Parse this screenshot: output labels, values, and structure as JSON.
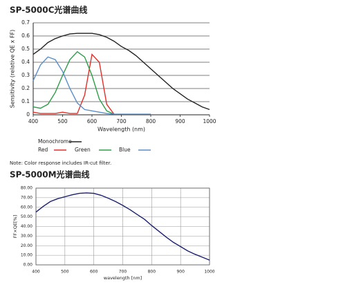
{
  "chart_data": [
    {
      "type": "line",
      "title": "SP-5000C光谱曲线",
      "x_label": "Wavelength (nm)",
      "y_label": "Sensitivity (relative QE x FF)",
      "note": "Note: Color response includes IR-cut filter.",
      "x": [
        400,
        425,
        450,
        475,
        500,
        525,
        550,
        575,
        600,
        625,
        650,
        675,
        700,
        725,
        750,
        775,
        800,
        825,
        850,
        875,
        900,
        925,
        950,
        975,
        1000
      ],
      "series": [
        {
          "name": "Monochrome",
          "color": "#222222",
          "values": [
            0.46,
            0.5,
            0.55,
            0.58,
            0.6,
            0.615,
            0.62,
            0.62,
            0.62,
            0.61,
            0.59,
            0.56,
            0.52,
            0.49,
            0.45,
            0.4,
            0.35,
            0.3,
            0.25,
            0.2,
            0.16,
            0.12,
            0.09,
            0.06,
            0.04
          ]
        },
        {
          "name": "Red",
          "color": "#e0302a",
          "values": [
            0.02,
            0.01,
            0.01,
            0.01,
            0.02,
            0.01,
            0.01,
            0.15,
            0.46,
            0.4,
            0.08,
            0.005,
            null,
            null,
            null,
            null,
            null,
            null,
            null,
            null,
            null,
            null,
            null,
            null,
            null
          ]
        },
        {
          "name": "Green",
          "color": "#2e9e48",
          "values": [
            0.06,
            0.05,
            0.08,
            0.17,
            0.3,
            0.42,
            0.48,
            0.44,
            0.3,
            0.12,
            0.03,
            0.005,
            null,
            null,
            null,
            null,
            null,
            null,
            null,
            null,
            null,
            null,
            null,
            null,
            null
          ]
        },
        {
          "name": "Blue",
          "color": "#5a8ec8",
          "values": [
            0.26,
            0.38,
            0.44,
            0.42,
            0.33,
            0.2,
            0.09,
            0.04,
            0.03,
            0.02,
            0.01,
            0.005,
            0.005,
            0.005,
            0.005,
            0.005,
            0.005,
            null,
            null,
            null,
            null,
            null,
            null,
            null,
            null
          ]
        }
      ],
      "xlim": [
        400,
        1000
      ],
      "xticks": [
        400,
        500,
        600,
        700,
        800,
        900,
        1000
      ],
      "ylim": [
        0,
        0.7
      ],
      "yticks": [
        0,
        0.1,
        0.2,
        0.3,
        0.4,
        0.5,
        0.6,
        0.7
      ],
      "grid": "horizontal",
      "legend": "bottom"
    },
    {
      "type": "line",
      "title": "SP-5000M光谱曲线",
      "x_label": "wavelength [nm]",
      "y_label": "FF×QE[%]",
      "x": [
        400,
        425,
        450,
        475,
        500,
        525,
        550,
        575,
        600,
        625,
        650,
        675,
        700,
        725,
        750,
        775,
        800,
        825,
        850,
        875,
        900,
        925,
        950,
        975,
        1000
      ],
      "series": [
        {
          "color": "#1a1f6e",
          "values": [
            55,
            61,
            66,
            69,
            71,
            73,
            74.5,
            75,
            74.5,
            72.5,
            69.5,
            66,
            62,
            57.5,
            52.5,
            47.5,
            41,
            35,
            29,
            23.5,
            19,
            14.5,
            11,
            8,
            5
          ]
        }
      ],
      "xlim": [
        400,
        1000
      ],
      "xticks": [
        400,
        500,
        600,
        700,
        800,
        900,
        1000
      ],
      "ylim": [
        0,
        80
      ],
      "yticks": [
        {
          "value": 0,
          "label": "0.00"
        },
        {
          "value": 10,
          "label": "10.00"
        },
        {
          "value": 20,
          "label": "20.00"
        },
        {
          "value": 30,
          "label": "30.00"
        },
        {
          "value": 40,
          "label": "40.00"
        },
        {
          "value": 50,
          "label": "50.00"
        },
        {
          "value": 60,
          "label": "60.00"
        },
        {
          "value": 70,
          "label": "70.00"
        },
        {
          "value": 80,
          "label": "80.00"
        }
      ],
      "grid": "both"
    }
  ]
}
